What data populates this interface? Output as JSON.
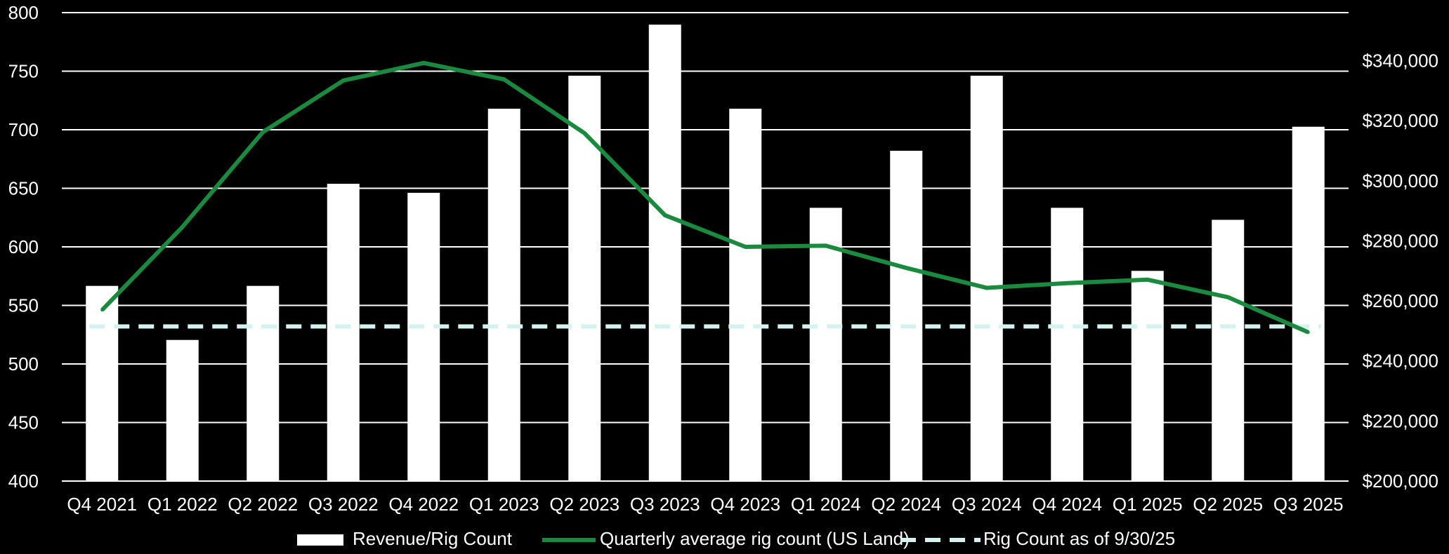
{
  "colors": {
    "background": "#000000",
    "bar": "#ffffff",
    "line": "#1a8a3e",
    "reference_line": "#d4f2ef",
    "gridline": "#ffffff",
    "text": "#ffffff"
  },
  "chart_data": {
    "type": "bar",
    "categories": [
      "Q4 2021",
      "Q1 2022",
      "Q2 2022",
      "Q3 2022",
      "Q4 2022",
      "Q1 2023",
      "Q2 2023",
      "Q3 2023",
      "Q4 2023",
      "Q1 2024",
      "Q2 2024",
      "Q3 2024",
      "Q4 2024",
      "Q1 2025",
      "Q2 2025",
      "Q3 2025"
    ],
    "left_axis": {
      "ylim": [
        400,
        800
      ],
      "ticks": [
        "400",
        "450",
        "500",
        "550",
        "600",
        "650",
        "700",
        "750",
        "800"
      ],
      "tick_values": [
        400,
        450,
        500,
        550,
        600,
        650,
        700,
        750,
        800
      ]
    },
    "right_axis": {
      "ylim": [
        200000,
        356000
      ],
      "ticks": [
        "$200,000",
        "$220,000",
        "$240,000",
        "$260,000",
        "$280,000",
        "$300,000",
        "$320,000",
        "$340,000"
      ],
      "tick_values": [
        200000,
        220000,
        240000,
        260000,
        280000,
        300000,
        320000,
        340000
      ]
    },
    "grid": true,
    "legend_position": "bottom",
    "series": [
      {
        "name": "Revenue/Rig Count",
        "kind": "bar",
        "axis": "right",
        "values": [
          265000,
          247000,
          265000,
          299000,
          296000,
          324000,
          335000,
          352000,
          324000,
          291000,
          310000,
          335000,
          291000,
          270000,
          287000,
          318000
        ]
      },
      {
        "name": "Quarterly average rig count (US Land)",
        "kind": "line",
        "axis": "left",
        "values": [
          546,
          617,
          698,
          742,
          757,
          743,
          697,
          627,
          600,
          601,
          582,
          565,
          569,
          572,
          557,
          527
        ]
      },
      {
        "name": "Rig Count as of 9/30/25",
        "kind": "reference",
        "axis": "left",
        "value": 532
      }
    ]
  }
}
